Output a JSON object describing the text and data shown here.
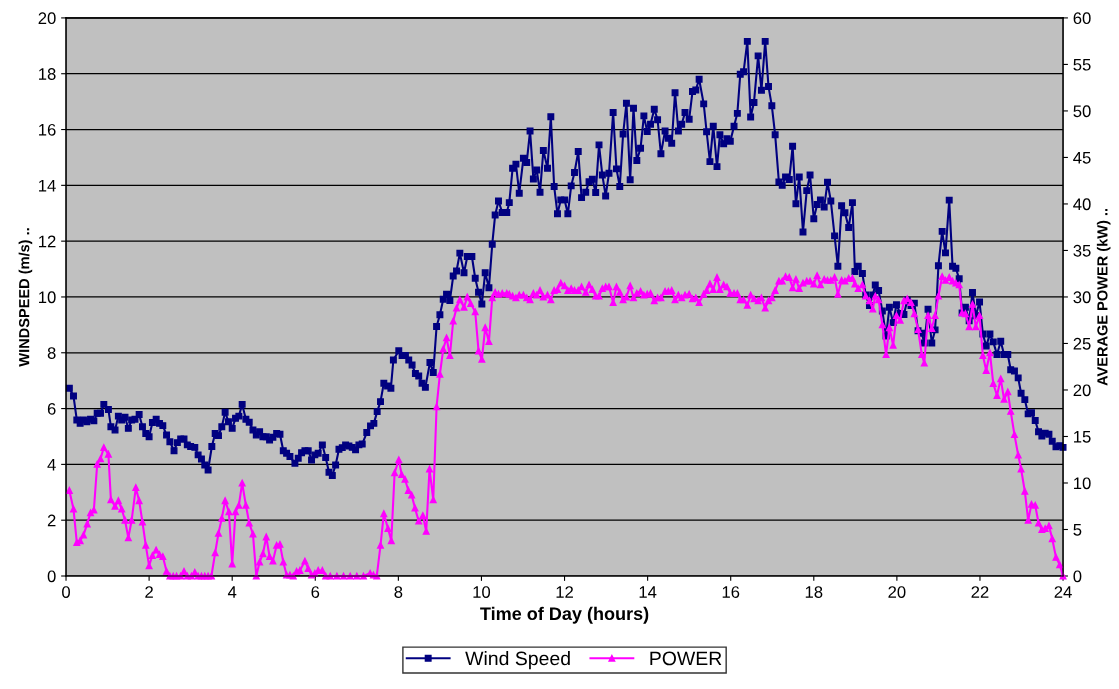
{
  "chart_data": {
    "type": "line",
    "xlabel": "Time of Day (hours)",
    "ylabel": "WINDSPEED (m/s) ..",
    "y2label": "AVERAGE POWER (kW) ..",
    "xlim": [
      0,
      24
    ],
    "xticks": [
      0,
      2,
      4,
      6,
      8,
      10,
      12,
      14,
      16,
      18,
      20,
      22,
      24
    ],
    "ylim": [
      0,
      20
    ],
    "yticks": [
      0,
      2,
      4,
      6,
      8,
      10,
      12,
      14,
      16,
      18,
      20
    ],
    "y2lim": [
      0,
      60
    ],
    "y2ticks": [
      0,
      5,
      10,
      15,
      20,
      25,
      30,
      35,
      40,
      45,
      50,
      55,
      60
    ],
    "grid": "y",
    "legend": "bottom",
    "line_style": "solid",
    "series": [
      {
        "name": "Wind Speed",
        "color": "#000080",
        "marker": "square",
        "x": [
          0.08,
          0.18,
          0.26,
          0.34,
          0.42,
          0.5,
          0.59,
          0.67,
          0.75,
          0.83,
          0.91,
          1.02,
          1.08,
          1.18,
          1.26,
          1.34,
          1.42,
          1.5,
          1.58,
          1.66,
          1.76,
          1.84,
          1.92,
          2.0,
          2.08,
          2.17,
          2.25,
          2.33,
          2.42,
          2.5,
          2.6,
          2.68,
          2.76,
          2.84,
          2.92,
          3.0,
          3.1,
          3.18,
          3.26,
          3.34,
          3.42,
          3.51,
          3.59,
          3.67,
          3.75,
          3.83,
          3.91,
          4.0,
          4.08,
          4.16,
          4.24,
          4.33,
          4.41,
          4.5,
          4.58,
          4.66,
          4.74,
          4.82,
          4.9,
          4.98,
          5.07,
          5.15,
          5.23,
          5.31,
          5.39,
          5.51,
          5.59,
          5.67,
          5.75,
          5.83,
          5.91,
          5.99,
          6.07,
          6.17,
          6.25,
          6.33,
          6.41,
          6.49,
          6.57,
          6.65,
          6.73,
          6.81,
          6.89,
          6.97,
          7.05,
          7.13,
          7.24,
          7.33,
          7.41,
          7.49,
          7.57,
          7.65,
          7.74,
          7.82,
          7.88,
          8.01,
          8.09,
          8.17,
          8.25,
          8.33,
          8.41,
          8.49,
          8.57,
          8.65,
          8.76,
          8.84,
          8.92,
          9.0,
          9.08,
          9.16,
          9.24,
          9.32,
          9.4,
          9.48,
          9.58,
          9.66,
          9.77,
          9.85,
          9.93,
          10.01,
          10.09,
          10.18,
          10.26,
          10.33,
          10.41,
          10.5,
          10.61,
          10.67,
          10.75,
          10.83,
          10.91,
          11.01,
          11.09,
          11.17,
          11.25,
          11.33,
          11.41,
          11.49,
          11.59,
          11.67,
          11.75,
          11.83,
          11.91,
          12.0,
          12.08,
          12.16,
          12.24,
          12.33,
          12.41,
          12.51,
          12.59,
          12.67,
          12.75,
          12.83,
          12.91,
          12.99,
          13.07,
          13.17,
          13.25,
          13.33,
          13.41,
          13.49,
          13.58,
          13.66,
          13.74,
          13.83,
          13.91,
          13.99,
          14.07,
          14.16,
          14.24,
          14.32,
          14.42,
          14.5,
          14.58,
          14.66,
          14.74,
          14.82,
          14.9,
          15.0,
          15.08,
          15.16,
          15.24,
          15.35,
          15.42,
          15.5,
          15.58,
          15.67,
          15.74,
          15.83,
          15.91,
          15.99,
          16.08,
          16.16,
          16.23,
          16.31,
          16.4,
          16.48,
          16.56,
          16.66,
          16.74,
          16.83,
          16.91,
          16.99,
          17.07,
          17.16,
          17.24,
          17.32,
          17.41,
          17.49,
          17.57,
          17.65,
          17.74,
          17.83,
          17.91,
          18.0,
          18.08,
          18.16,
          18.25,
          18.33,
          18.41,
          18.5,
          18.58,
          18.67,
          18.75,
          18.84,
          18.93,
          18.99,
          19.07,
          19.17,
          19.25,
          19.34,
          19.42,
          19.48,
          19.56,
          19.65,
          19.74,
          19.82,
          19.91,
          19.99,
          20.08,
          20.17,
          20.25,
          20.34,
          20.42,
          20.51,
          20.6,
          20.66,
          20.75,
          20.84,
          20.92,
          21.0,
          21.09,
          21.17,
          21.26,
          21.34,
          21.42,
          21.5,
          21.57,
          21.65,
          21.74,
          21.82,
          21.9,
          21.99,
          22.07,
          22.15,
          22.24,
          22.32,
          22.41,
          22.5,
          22.58,
          22.67,
          22.74,
          22.83,
          22.92,
          22.99,
          23.08,
          23.16,
          23.24,
          23.33,
          23.41,
          23.49,
          23.57,
          23.66,
          23.74,
          23.83,
          23.92,
          24.0
        ],
        "values": [
          6.73,
          6.45,
          5.59,
          5.47,
          5.59,
          5.53,
          5.62,
          5.56,
          5.83,
          5.83,
          6.15,
          5.97,
          5.35,
          5.23,
          5.73,
          5.59,
          5.69,
          5.29,
          5.59,
          5.62,
          5.79,
          5.35,
          5.11,
          4.99,
          5.5,
          5.62,
          5.47,
          5.39,
          5.05,
          4.81,
          4.49,
          4.78,
          4.91,
          4.91,
          4.7,
          4.64,
          4.61,
          4.34,
          4.19,
          3.98,
          3.8,
          4.64,
          5.11,
          5.03,
          5.35,
          5.87,
          5.53,
          5.29,
          5.65,
          5.73,
          6.15,
          5.62,
          5.51,
          5.23,
          5.05,
          5.17,
          4.99,
          4.99,
          4.87,
          4.97,
          5.11,
          5.08,
          4.49,
          4.4,
          4.28,
          4.04,
          4.22,
          4.42,
          4.49,
          4.49,
          4.16,
          4.34,
          4.4,
          4.7,
          4.25,
          3.72,
          3.6,
          3.98,
          4.54,
          4.6,
          4.7,
          4.66,
          4.61,
          4.52,
          4.7,
          4.73,
          5.14,
          5.38,
          5.47,
          5.89,
          6.25,
          6.91,
          6.81,
          6.73,
          7.74,
          8.07,
          7.9,
          7.9,
          7.74,
          7.56,
          7.26,
          7.17,
          6.91,
          6.76,
          7.65,
          7.29,
          8.94,
          9.36,
          9.92,
          10.1,
          9.87,
          10.75,
          10.93,
          11.57,
          10.87,
          11.45,
          11.45,
          10.67,
          10.17,
          9.75,
          10.87,
          10.33,
          11.89,
          12.94,
          13.44,
          13.03,
          13.03,
          13.38,
          14.61,
          14.76,
          13.72,
          14.97,
          14.82,
          15.95,
          14.23,
          14.55,
          13.75,
          15.25,
          14.61,
          16.46,
          13.96,
          12.98,
          13.48,
          13.48,
          12.98,
          13.98,
          14.46,
          15.21,
          13.56,
          13.75,
          14.13,
          14.22,
          13.74,
          15.45,
          14.37,
          13.62,
          14.43,
          16.61,
          14.59,
          13.96,
          15.84,
          16.94,
          14.2,
          16.76,
          14.89,
          15.33,
          16.49,
          15.93,
          16.19,
          16.73,
          16.35,
          15.13,
          15.95,
          15.69,
          15.51,
          17.32,
          15.95,
          16.19,
          16.61,
          16.37,
          17.36,
          17.42,
          17.8,
          16.92,
          15.92,
          14.85,
          16.12,
          14.67,
          15.81,
          15.49,
          15.67,
          15.58,
          16.12,
          16.58,
          17.98,
          18.07,
          19.16,
          16.45,
          16.97,
          18.64,
          17.41,
          19.16,
          17.54,
          16.85,
          15.81,
          14.12,
          14.0,
          14.3,
          14.21,
          15.4,
          13.34,
          14.3,
          12.33,
          13.81,
          14.37,
          12.8,
          13.31,
          13.48,
          13.22,
          14.11,
          13.44,
          12.19,
          11.1,
          13.27,
          13.02,
          12.49,
          13.38,
          10.91,
          11.1,
          10.84,
          10.07,
          9.69,
          10.07,
          10.43,
          10.23,
          9.5,
          8.6,
          9.63,
          9.08,
          9.72,
          9.41,
          9.37,
          9.88,
          9.69,
          9.78,
          8.79,
          8.7,
          8.35,
          9.56,
          8.35,
          8.82,
          11.12,
          12.35,
          11.58,
          13.47,
          11.1,
          11.03,
          10.65,
          9.43,
          9.63,
          9.15,
          10.16,
          9.33,
          9.82,
          8.67,
          8.24,
          8.67,
          8.39,
          7.94,
          8.41,
          7.94,
          7.94,
          7.39,
          7.35,
          7.1,
          6.55,
          6.32,
          5.81,
          5.85,
          5.57,
          5.17,
          5.02,
          5.12,
          5.08,
          4.83,
          4.63,
          4.67,
          4.61
        ]
      },
      {
        "name": "POWER",
        "color": "#ff00ff",
        "marker": "triangle",
        "axis": "y2",
        "x": [
          0.08,
          0.18,
          0.26,
          0.34,
          0.42,
          0.51,
          0.59,
          0.67,
          0.75,
          0.83,
          0.91,
          1.02,
          1.08,
          1.18,
          1.26,
          1.34,
          1.42,
          1.5,
          1.58,
          1.68,
          1.76,
          1.84,
          1.92,
          2.0,
          2.08,
          2.17,
          2.25,
          2.33,
          2.42,
          2.5,
          2.58,
          2.66,
          2.76,
          2.84,
          2.92,
          3.02,
          3.1,
          3.18,
          3.26,
          3.34,
          3.42,
          3.5,
          3.59,
          3.67,
          3.75,
          3.83,
          3.92,
          4.0,
          4.08,
          4.16,
          4.24,
          4.33,
          4.41,
          4.5,
          4.58,
          4.66,
          4.74,
          4.82,
          4.9,
          4.98,
          5.07,
          5.15,
          5.23,
          5.31,
          5.39,
          5.47,
          5.55,
          5.63,
          5.75,
          5.83,
          5.91,
          5.99,
          6.07,
          6.17,
          6.25,
          6.36,
          6.52,
          6.68,
          6.84,
          7.0,
          7.16,
          7.32,
          7.4,
          7.48,
          7.57,
          7.65,
          7.75,
          7.83,
          7.91,
          8.01,
          8.08,
          8.16,
          8.24,
          8.32,
          8.4,
          8.49,
          8.59,
          8.67,
          8.75,
          8.84,
          8.92,
          9.0,
          9.08,
          9.16,
          9.24,
          9.32,
          9.4,
          9.48,
          9.58,
          9.66,
          9.74,
          9.85,
          9.93,
          10.01,
          10.09,
          10.18,
          10.26,
          10.33,
          10.41,
          10.5,
          10.61,
          10.67,
          10.75,
          10.83,
          10.91,
          11.01,
          11.09,
          11.17,
          11.25,
          11.33,
          11.41,
          11.49,
          11.59,
          11.67,
          11.75,
          11.83,
          11.91,
          12.0,
          12.08,
          12.16,
          12.24,
          12.33,
          12.41,
          12.51,
          12.59,
          12.67,
          12.75,
          12.83,
          12.91,
          12.99,
          13.07,
          13.17,
          13.25,
          13.33,
          13.41,
          13.49,
          13.58,
          13.66,
          13.74,
          13.83,
          13.91,
          13.99,
          14.07,
          14.16,
          14.24,
          14.32,
          14.42,
          14.5,
          14.58,
          14.66,
          14.74,
          14.82,
          14.9,
          15.0,
          15.08,
          15.16,
          15.24,
          15.35,
          15.42,
          15.5,
          15.58,
          15.67,
          15.74,
          15.83,
          15.91,
          15.99,
          16.08,
          16.16,
          16.23,
          16.31,
          16.4,
          16.48,
          16.56,
          16.66,
          16.74,
          16.83,
          16.91,
          16.99,
          17.07,
          17.16,
          17.24,
          17.32,
          17.41,
          17.49,
          17.57,
          17.65,
          17.74,
          17.83,
          17.91,
          18.0,
          18.08,
          18.16,
          18.25,
          18.33,
          18.41,
          18.5,
          18.58,
          18.67,
          18.75,
          18.84,
          18.93,
          18.99,
          19.07,
          19.17,
          19.25,
          19.34,
          19.42,
          19.48,
          19.56,
          19.65,
          19.74,
          19.82,
          19.91,
          19.99,
          20.08,
          20.17,
          20.25,
          20.34,
          20.42,
          20.51,
          20.6,
          20.66,
          20.75,
          20.84,
          20.92,
          21.0,
          21.09,
          21.17,
          21.26,
          21.34,
          21.42,
          21.5,
          21.57,
          21.65,
          21.74,
          21.82,
          21.9,
          21.99,
          22.07,
          22.15,
          22.24,
          22.32,
          22.41,
          22.5,
          22.58,
          22.67,
          22.74,
          22.83,
          22.92,
          22.99,
          23.08,
          23.16,
          23.24,
          23.33,
          23.41,
          23.49,
          23.57,
          23.66,
          23.74,
          23.83,
          23.92,
          24.0
        ],
        "values": [
          9.2,
          7.2,
          3.6,
          3.8,
          4.4,
          5.6,
          6.8,
          7.1,
          12.0,
          12.6,
          13.8,
          13.1,
          8.2,
          7.5,
          8.1,
          7.2,
          6.0,
          4.1,
          6.0,
          9.5,
          8.1,
          5.8,
          3.3,
          1.1,
          2.2,
          2.8,
          2.3,
          2.1,
          0.5,
          0,
          0,
          0,
          0,
          0.5,
          0,
          0,
          0.4,
          0,
          0,
          0,
          0,
          0,
          2.5,
          4.6,
          6.2,
          8.1,
          6.9,
          1.3,
          6.9,
          7.6,
          10.0,
          7.6,
          5.7,
          4.5,
          0,
          1.5,
          2.4,
          4.2,
          2.1,
          1.6,
          3.3,
          3.4,
          1.5,
          0.1,
          0.1,
          0,
          0.5,
          0.6,
          1.6,
          0.8,
          0.1,
          0.3,
          0.6,
          0.6,
          0,
          0,
          0,
          0,
          0,
          0,
          0,
          0.3,
          0.1,
          0,
          3.3,
          6.7,
          5.1,
          3.8,
          11.1,
          12.5,
          10.9,
          10.4,
          9.2,
          8.7,
          7.3,
          5.9,
          6.5,
          4.8,
          11.5,
          8.2,
          18.2,
          21.7,
          24.4,
          25.6,
          23.7,
          27.4,
          28.8,
          29.7,
          28.9,
          30.0,
          29.3,
          28.4,
          24.2,
          23.3,
          26.7,
          25.2,
          29.9,
          30.5,
          30.3,
          30.4,
          30.4,
          30.3,
          30.1,
          29.9,
          30.2,
          30.2,
          29.9,
          29.7,
          30.4,
          30.2,
          30.7,
          30.0,
          30.2,
          29.7,
          30.7,
          30.8,
          31.5,
          31.2,
          30.7,
          30.9,
          30.7,
          30.7,
          31.1,
          30.5,
          31.3,
          30.8,
          30.1,
          30.1,
          30.9,
          31.1,
          31.1,
          29.4,
          31.1,
          30.5,
          29.7,
          30.0,
          31.2,
          29.9,
          30.4,
          30.6,
          30.2,
          30.3,
          30.4,
          29.6,
          29.9,
          29.9,
          30.6,
          30.6,
          30.7,
          29.7,
          30.2,
          29.9,
          30.2,
          30.3,
          29.8,
          29.9,
          29.4,
          30.3,
          30.7,
          31.4,
          30.8,
          32.1,
          30.8,
          31.3,
          31.1,
          30.4,
          30.4,
          30.4,
          29.7,
          29.7,
          29.1,
          30.2,
          29.8,
          29.6,
          29.9,
          28.8,
          29.6,
          29.9,
          30.7,
          31.7,
          31.7,
          32.2,
          32.1,
          31.0,
          31.9,
          30.9,
          31.5,
          31.7,
          31.7,
          31.4,
          32.3,
          31.3,
          31.9,
          31.8,
          31.8,
          32.1,
          30.3,
          31.8,
          31.7,
          32.0,
          32.0,
          31.4,
          30.9,
          31.3,
          30.1,
          29.6,
          28.7,
          30.1,
          29.7,
          27.0,
          23.8,
          26.7,
          24.8,
          28.0,
          27.5,
          29.6,
          29.8,
          29.4,
          28.2,
          26.5,
          23.8,
          22.9,
          28.0,
          26.6,
          28.0,
          30.1,
          32.2,
          31.8,
          32.1,
          31.7,
          31.5,
          31.3,
          28.3,
          28.2,
          26.8,
          29.2,
          26.8,
          28.0,
          23.7,
          22.1,
          24.0,
          20.7,
          19.4,
          21.2,
          19.0,
          19.8,
          17.7,
          15.2,
          13.0,
          11.5,
          9.1,
          6.0,
          7.7,
          7.6,
          5.7,
          5.0,
          5.1,
          5.4,
          4.0,
          2.0,
          1.2,
          0.0
        ]
      }
    ]
  }
}
